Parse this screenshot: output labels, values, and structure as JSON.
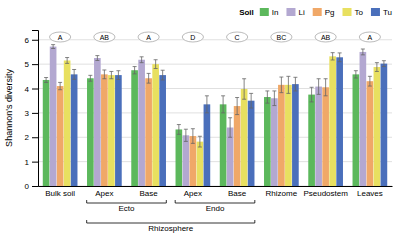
{
  "chart_data": {
    "type": "bar",
    "categories": [
      "Bulk soil",
      "Apex",
      "Base",
      "Apex",
      "Base",
      "Rhizome",
      "Pseudostem",
      "Leaves"
    ],
    "series": [
      {
        "name": "In",
        "color": "#5cb85c",
        "values": [
          4.35,
          4.42,
          4.75,
          2.32,
          3.35,
          3.65,
          3.75,
          4.58
        ],
        "errors": [
          0.1,
          0.12,
          0.15,
          0.2,
          0.35,
          0.25,
          0.3,
          0.15
        ]
      },
      {
        "name": "Li",
        "color": "#b3a8d1",
        "values": [
          5.72,
          5.25,
          5.18,
          2.08,
          2.4,
          3.6,
          4.08,
          5.5
        ],
        "errors": [
          0.08,
          0.1,
          0.12,
          0.25,
          0.4,
          0.3,
          0.32,
          0.12
        ]
      },
      {
        "name": "Pg",
        "color": "#f0a868",
        "values": [
          4.1,
          4.58,
          4.42,
          2.05,
          3.28,
          4.15,
          4.05,
          4.3
        ],
        "errors": [
          0.15,
          0.18,
          0.2,
          0.3,
          0.35,
          0.32,
          0.35,
          0.2
        ]
      },
      {
        "name": "To",
        "color": "#e8e060",
        "values": [
          5.15,
          4.55,
          5.0,
          1.82,
          3.98,
          4.15,
          5.32,
          4.88
        ],
        "errors": [
          0.12,
          0.15,
          0.18,
          0.22,
          0.42,
          0.35,
          0.15,
          0.18
        ]
      },
      {
        "name": "Tu",
        "color": "#4a6fbb",
        "values": [
          4.58,
          4.55,
          4.55,
          3.35,
          3.5,
          4.18,
          5.28,
          5.02
        ],
        "errors": [
          0.2,
          0.18,
          0.2,
          0.35,
          0.3,
          0.28,
          0.18,
          0.12
        ]
      }
    ],
    "significance": [
      "A",
      "AB",
      "A",
      "D",
      "C",
      "BC",
      "AB",
      "A"
    ],
    "annotations": [
      {
        "text": "Ecto",
        "from": 1,
        "to": 2
      },
      {
        "text": "Endo",
        "from": 3,
        "to": 4
      },
      {
        "text": "Rhizosphere",
        "from": 1,
        "to": 4
      }
    ],
    "legend_title": "Soil",
    "ylabel": "Shannon's diversity",
    "ylim": [
      0.0,
      6.4
    ],
    "yticks": [
      0,
      1,
      2,
      3,
      4,
      5,
      6
    ],
    "grid": true,
    "legend": "upper right"
  }
}
